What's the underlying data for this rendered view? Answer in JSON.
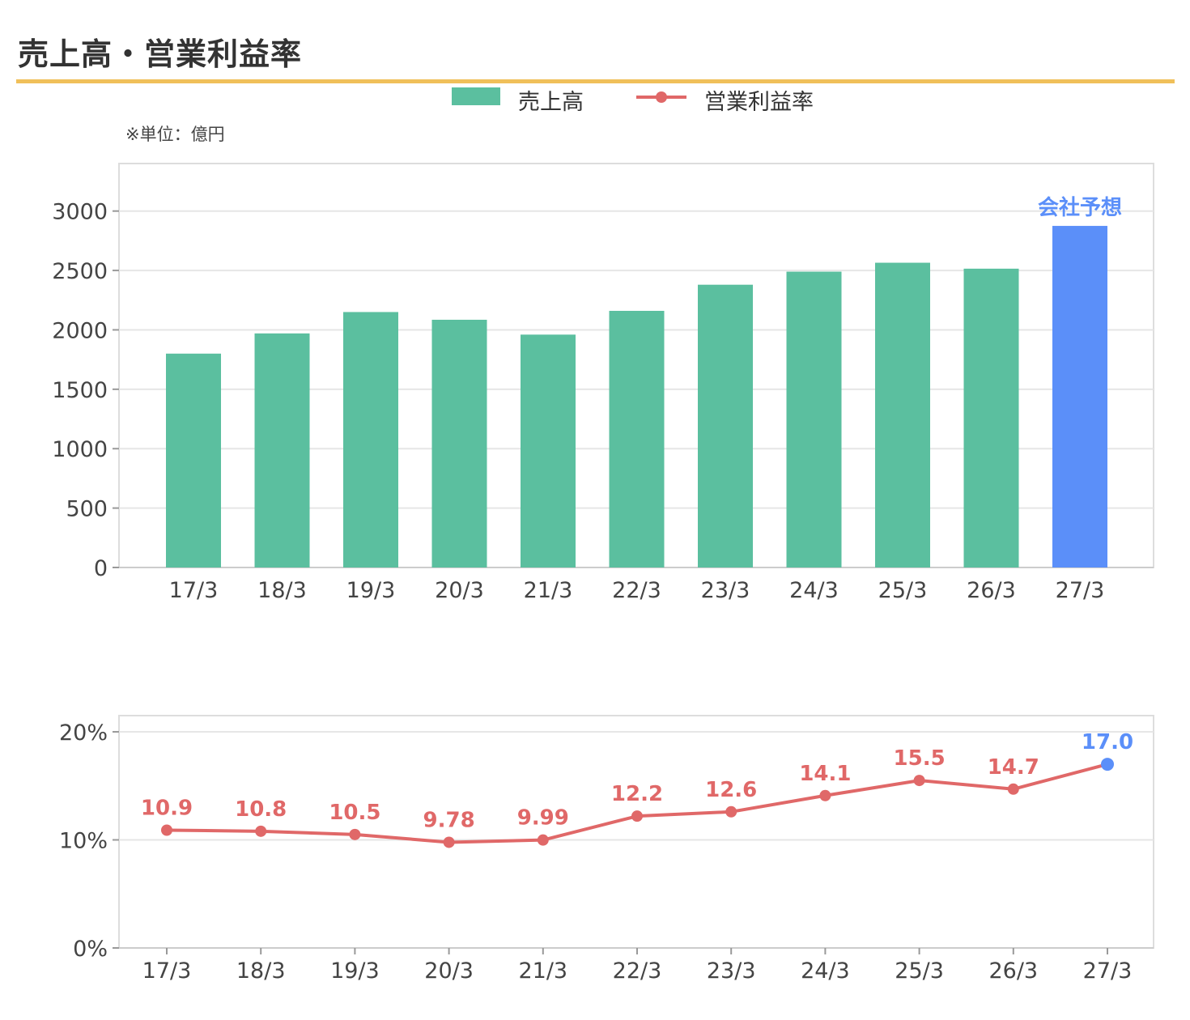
{
  "page": {
    "title": "売上高・営業利益率",
    "unit_note": "※単位：億円"
  },
  "colors": {
    "bar": "#5bbf9f",
    "forecast": "#5b8ff9",
    "line": "#e06868",
    "grid": "#e6e6e6",
    "title_rule": "#f0c05a"
  },
  "legend": {
    "bar_label": "売上高",
    "line_label": "営業利益率"
  },
  "chart_data": [
    {
      "type": "bar",
      "categories": [
        "17/3",
        "18/3",
        "19/3",
        "20/3",
        "21/3",
        "22/3",
        "23/3",
        "24/3",
        "25/3",
        "26/3",
        "27/3"
      ],
      "series": [
        {
          "name": "売上高",
          "values": [
            1800,
            1970,
            2150,
            2085,
            1960,
            2160,
            2380,
            2490,
            2565,
            2515,
            2875
          ]
        }
      ],
      "forecast_index": 10,
      "forecast_label": "会社予想",
      "yticks": [
        "0",
        "500",
        "1000",
        "1500",
        "2000",
        "2500",
        "3000"
      ],
      "ylim": [
        0,
        3400
      ],
      "grid": true
    },
    {
      "type": "line",
      "categories": [
        "17/3",
        "18/3",
        "19/3",
        "20/3",
        "21/3",
        "22/3",
        "23/3",
        "24/3",
        "25/3",
        "26/3",
        "27/3"
      ],
      "series": [
        {
          "name": "営業利益率",
          "values": [
            10.9,
            10.8,
            10.5,
            9.78,
            9.99,
            12.2,
            12.6,
            14.1,
            15.5,
            14.7,
            17.0
          ],
          "labels": [
            "10.9",
            "10.8",
            "10.5",
            "9.78",
            "9.99",
            "12.2",
            "12.6",
            "14.1",
            "15.5",
            "14.7",
            "17.0"
          ]
        }
      ],
      "forecast_index": 10,
      "yticks": [
        "0%",
        "10%",
        "20%"
      ],
      "ylim": [
        0,
        21.5
      ],
      "grid": true
    }
  ]
}
